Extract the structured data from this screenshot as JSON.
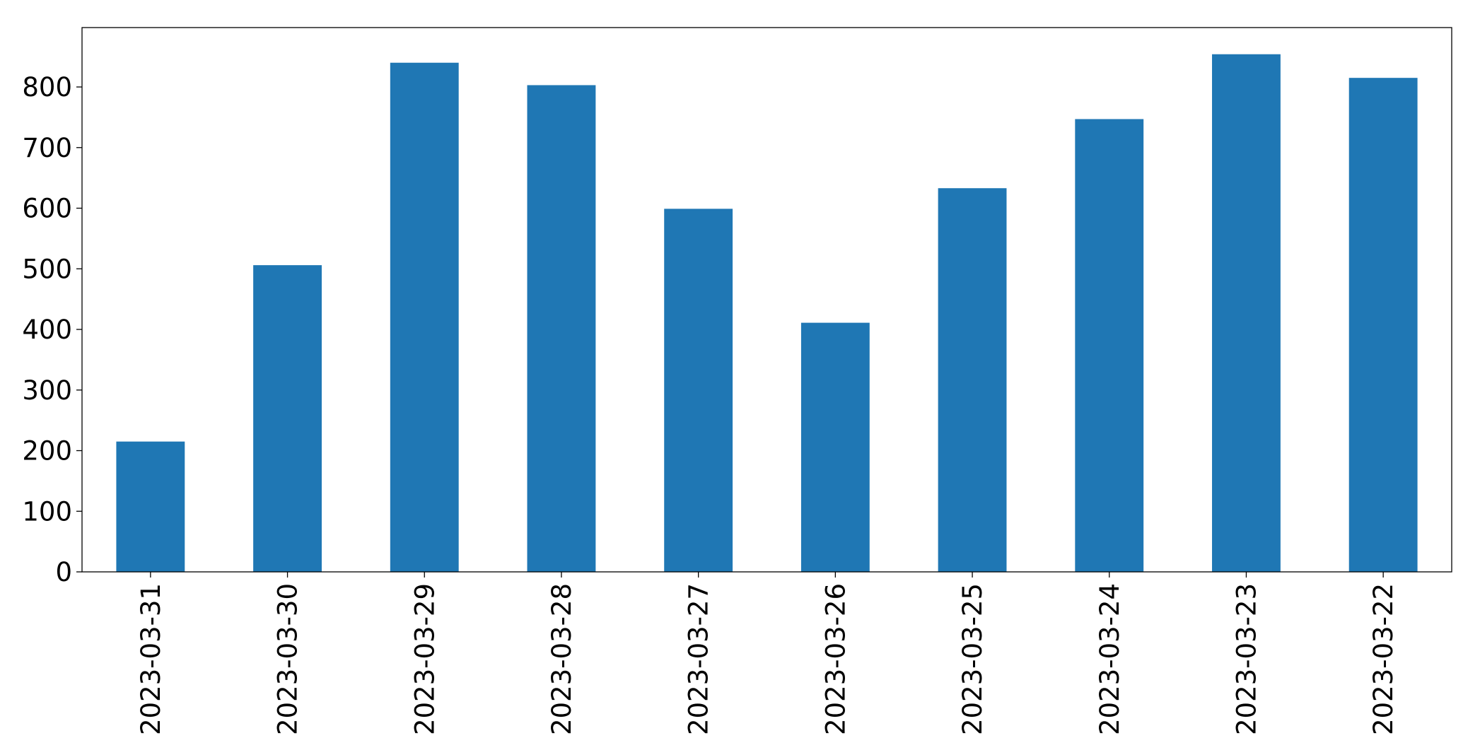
{
  "chart_data": {
    "type": "bar",
    "categories": [
      "2023-03-31",
      "2023-03-30",
      "2023-03-29",
      "2023-03-28",
      "2023-03-27",
      "2023-03-26",
      "2023-03-25",
      "2023-03-24",
      "2023-03-23",
      "2023-03-22"
    ],
    "values": [
      215,
      506,
      840,
      803,
      599,
      411,
      633,
      747,
      854,
      815
    ],
    "color": "#1f77b4",
    "ylim": [
      0,
      898
    ],
    "yticks": [
      0,
      100,
      200,
      300,
      400,
      500,
      600,
      700,
      800
    ],
    "grid": false
  }
}
